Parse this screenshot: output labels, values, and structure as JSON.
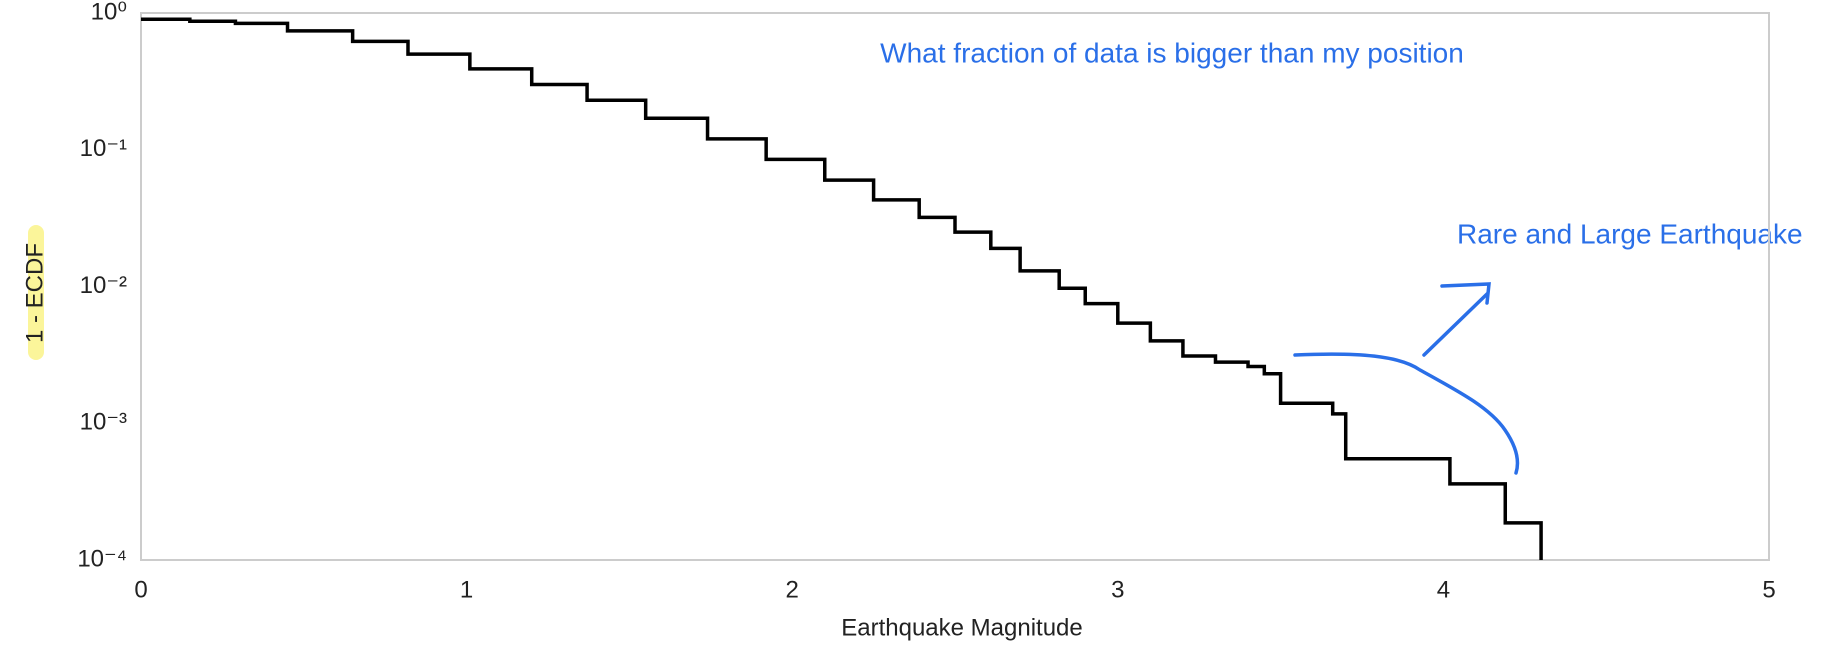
{
  "chart_data": {
    "type": "line",
    "step": "post",
    "x_label": "Earthquake Magnitude",
    "y_label": "1 - ECDF",
    "annotations": [
      "What fraction of data is bigger than my position",
      "Rare and Large Earthquake"
    ],
    "color": "#000000",
    "annotation_color": "#2a6fe8",
    "log_y": true,
    "grid": false,
    "xlim": [
      0,
      5
    ],
    "xticks": [
      0,
      1,
      2,
      3,
      4,
      5
    ],
    "ylim": [
      0.0001,
      1
    ],
    "yticks": [
      {
        "value": 1,
        "label": "10⁰"
      },
      {
        "value": 0.1,
        "label": "10⁻¹"
      },
      {
        "value": 0.01,
        "label": "10⁻²"
      },
      {
        "value": 0.001,
        "label": "10⁻³"
      },
      {
        "value": 0.0001,
        "label": "10⁻⁴"
      }
    ],
    "x": [
      0,
      0.15,
      0.29,
      0.45,
      0.65,
      0.82,
      1.01,
      1.2,
      1.37,
      1.55,
      1.74,
      1.92,
      2.1,
      2.25,
      2.39,
      2.5,
      2.61,
      2.7,
      2.82,
      2.9,
      3.0,
      3.1,
      3.2,
      3.3,
      3.4,
      3.45,
      3.5,
      3.66,
      3.7,
      4.02,
      4.19,
      4.3
    ],
    "y": [
      0.9,
      0.87,
      0.84,
      0.74,
      0.62,
      0.5,
      0.39,
      0.3,
      0.23,
      0.17,
      0.12,
      0.085,
      0.06,
      0.043,
      0.032,
      0.025,
      0.019,
      0.013,
      0.0097,
      0.0075,
      0.0054,
      0.004,
      0.0031,
      0.0028,
      0.0026,
      0.0023,
      0.0014,
      0.00117,
      0.00055,
      0.00036,
      0.000187,
      0.0001
    ]
  }
}
